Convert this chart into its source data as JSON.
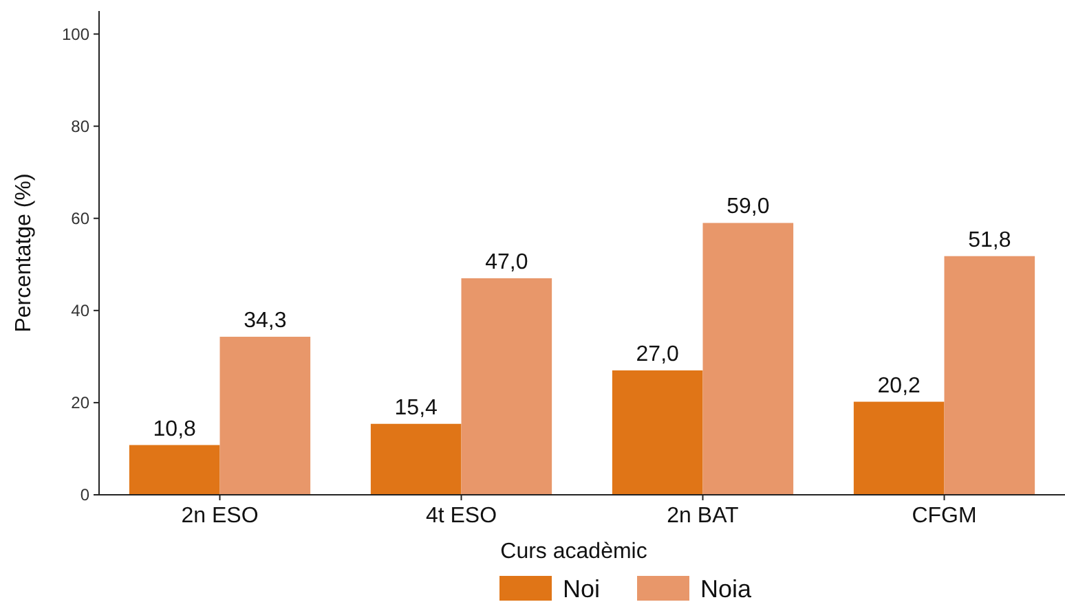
{
  "chart_data": {
    "type": "bar",
    "xlabel": "Curs acadèmic",
    "ylabel": "Percentatge (%)",
    "categories": [
      "2n ESO",
      "4t ESO",
      "2n BAT",
      "CFGM"
    ],
    "series": [
      {
        "name": "Noi",
        "color": "#e07517",
        "values": [
          10.8,
          15.4,
          27.0,
          20.2
        ],
        "value_labels": [
          "10,8",
          "15,4",
          "27,0",
          "20,2"
        ]
      },
      {
        "name": "Noia",
        "color": "#e8976a",
        "values": [
          34.3,
          47.0,
          59.0,
          51.8
        ],
        "value_labels": [
          "34,3",
          "47,0",
          "59,0",
          "51,8"
        ]
      }
    ],
    "ylim": [
      0,
      105
    ],
    "yticks": [
      0,
      20,
      40,
      60,
      80,
      100
    ],
    "grid": false,
    "legend": "bottom"
  }
}
